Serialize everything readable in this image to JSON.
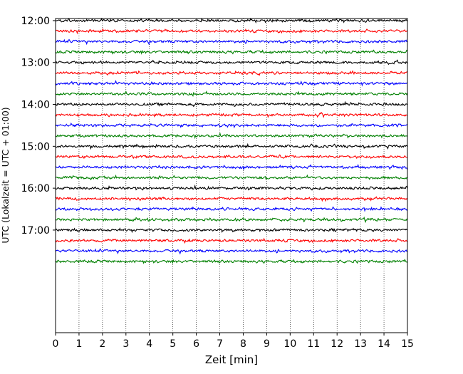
{
  "chart_data": {
    "type": "line",
    "xlabel": "Zeit  [min]",
    "ylabel": "UTC (Lokalzeit = UTC + 01:00)",
    "xlim": [
      0,
      15
    ],
    "xticks": [
      "0",
      "1",
      "2",
      "3",
      "4",
      "5",
      "6",
      "7",
      "8",
      "9",
      "10",
      "11",
      "12",
      "13",
      "14",
      "15"
    ],
    "ylim_minutes_utc": [
      717,
      1167
    ],
    "yticks": [
      "12:00",
      "13:00",
      "14:00",
      "15:00",
      "16:00",
      "17:00"
    ],
    "grid": {
      "x": "dotted",
      "y": false
    },
    "trace_interval_minutes": 15,
    "trace_colors": [
      "#000000",
      "#ff0000",
      "#0000ff",
      "#008000"
    ],
    "traces": [
      {
        "start": "12:00",
        "color": "#000000"
      },
      {
        "start": "12:15",
        "color": "#ff0000"
      },
      {
        "start": "12:30",
        "color": "#0000ff"
      },
      {
        "start": "12:45",
        "color": "#008000"
      },
      {
        "start": "13:00",
        "color": "#000000"
      },
      {
        "start": "13:15",
        "color": "#ff0000"
      },
      {
        "start": "13:30",
        "color": "#0000ff"
      },
      {
        "start": "13:45",
        "color": "#008000"
      },
      {
        "start": "14:00",
        "color": "#000000"
      },
      {
        "start": "14:15",
        "color": "#ff0000"
      },
      {
        "start": "14:30",
        "color": "#0000ff"
      },
      {
        "start": "14:45",
        "color": "#008000"
      },
      {
        "start": "15:00",
        "color": "#000000"
      },
      {
        "start": "15:15",
        "color": "#ff0000"
      },
      {
        "start": "15:30",
        "color": "#0000ff"
      },
      {
        "start": "15:45",
        "color": "#008000"
      },
      {
        "start": "16:00",
        "color": "#000000"
      },
      {
        "start": "16:15",
        "color": "#ff0000"
      },
      {
        "start": "16:30",
        "color": "#0000ff"
      },
      {
        "start": "16:45",
        "color": "#008000"
      },
      {
        "start": "17:00",
        "color": "#000000"
      },
      {
        "start": "17:15",
        "color": "#ff0000"
      },
      {
        "start": "17:30",
        "color": "#0000ff"
      },
      {
        "start": "17:45",
        "color": "#008000"
      }
    ]
  }
}
